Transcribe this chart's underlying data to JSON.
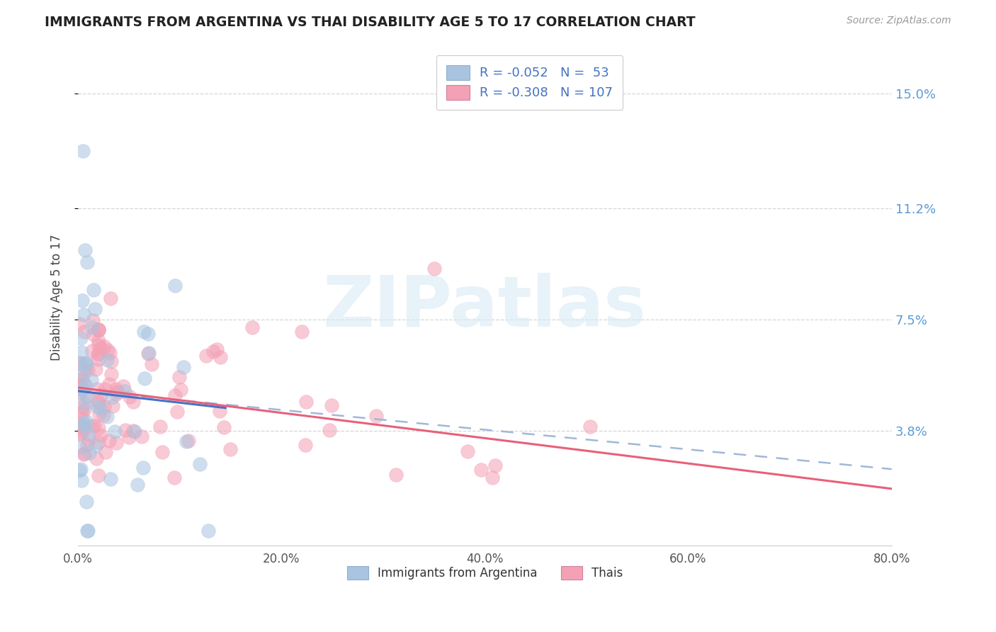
{
  "title": "IMMIGRANTS FROM ARGENTINA VS THAI DISABILITY AGE 5 TO 17 CORRELATION CHART",
  "source": "Source: ZipAtlas.com",
  "ylabel": "Disability Age 5 to 17",
  "xlim": [
    0.0,
    0.8
  ],
  "ylim": [
    0.0,
    0.165
  ],
  "yticks": [
    0.038,
    0.075,
    0.112,
    0.15
  ],
  "ytick_labels": [
    "3.8%",
    "7.5%",
    "11.2%",
    "15.0%"
  ],
  "xticks": [
    0.0,
    0.2,
    0.4,
    0.6,
    0.8
  ],
  "xtick_labels": [
    "0.0%",
    "20.0%",
    "40.0%",
    "60.0%",
    "80.0%"
  ],
  "argentina_R": -0.052,
  "argentina_N": 53,
  "thai_R": -0.308,
  "thai_N": 107,
  "argentina_color": "#a8c4e0",
  "thai_color": "#f4a0b5",
  "argentina_line_color": "#4472c4",
  "thai_line_color": "#e8607a",
  "dashed_line_color": "#a0b8d8",
  "watermark_text": "ZIPatlas",
  "legend_argentina": "Immigrants from Argentina",
  "legend_thai": "Thais",
  "title_color": "#222222",
  "source_color": "#999999",
  "tick_label_color_blue": "#5b9bd5",
  "axis_tick_color": "#555555"
}
